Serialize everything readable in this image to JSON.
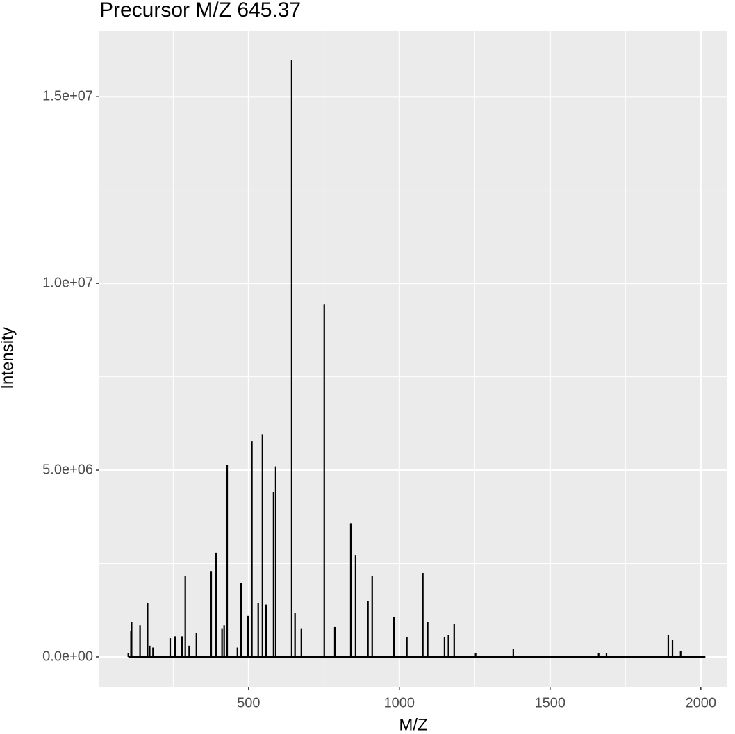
{
  "chart_data": {
    "type": "spectrum",
    "title": "Precursor M/Z 645.37",
    "x_label": "M/Z",
    "y_label": "Intensity",
    "x": [
      101,
      110,
      112,
      140,
      165,
      172,
      183,
      240,
      256,
      279,
      290,
      303,
      327,
      376,
      392,
      412,
      419,
      429,
      463,
      475,
      498,
      511,
      532,
      546,
      558,
      583,
      590,
      643,
      654,
      675,
      751,
      786,
      839,
      855,
      896,
      910,
      982,
      1025,
      1078,
      1094,
      1150,
      1163,
      1182,
      1253,
      1378,
      1661,
      1687,
      1892,
      1906,
      1933,
      2015
    ],
    "values": [
      100000,
      700000,
      930000,
      850000,
      1430000,
      300000,
      250000,
      500000,
      550000,
      550000,
      2170000,
      300000,
      650000,
      2300000,
      2790000,
      750000,
      850000,
      5150000,
      250000,
      1980000,
      1100000,
      5780000,
      1440000,
      5960000,
      1400000,
      4420000,
      5100000,
      15980000,
      1170000,
      750000,
      9440000,
      800000,
      3580000,
      2730000,
      1490000,
      2170000,
      1070000,
      520000,
      2250000,
      930000,
      520000,
      580000,
      890000,
      100000,
      220000,
      100000,
      100000,
      580000,
      450000,
      150000,
      0
    ],
    "color": "#000000",
    "xlim": [
      5,
      2088
    ],
    "xticks": [
      500,
      1000,
      1500,
      2000
    ],
    "ylim": [
      -800000,
      16770000
    ],
    "yticks": [
      {
        "value": 0,
        "label": "0.0e+00"
      },
      {
        "value": 5000000,
        "label": "5.0e+06"
      },
      {
        "value": 10000000,
        "label": "1.0e+07"
      },
      {
        "value": 15000000,
        "label": "1.5e+07"
      }
    ],
    "grid": true
  }
}
